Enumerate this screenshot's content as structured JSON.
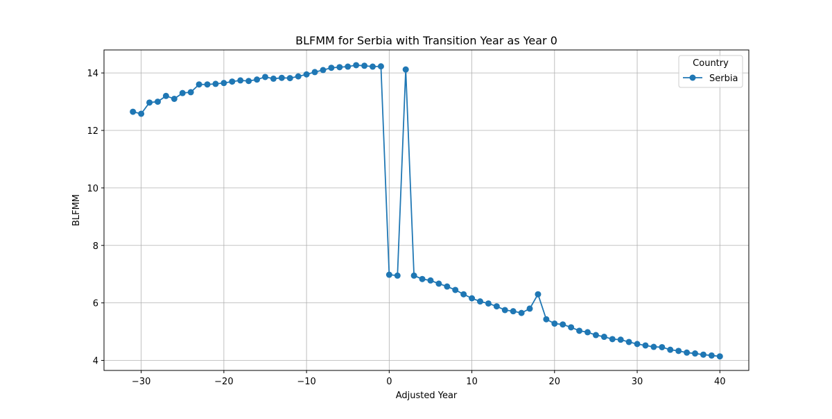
{
  "chart_data": {
    "type": "line",
    "title": "BLFMM for Serbia with Transition Year as Year 0",
    "xlabel": "Adjusted Year",
    "ylabel": "BLFMM",
    "xlim": [
      -34.5,
      43.5
    ],
    "ylim": [
      3.65,
      14.8
    ],
    "xticks": [
      -30,
      -20,
      -10,
      0,
      10,
      20,
      30,
      40
    ],
    "xtick_labels": [
      "−30",
      "−20",
      "−10",
      "0",
      "10",
      "20",
      "30",
      "40"
    ],
    "yticks": [
      4,
      6,
      8,
      10,
      12,
      14
    ],
    "ytick_labels": [
      "4",
      "6",
      "8",
      "10",
      "12",
      "14"
    ],
    "grid": true,
    "legend": {
      "title": "Country",
      "placement": "top-right"
    },
    "series": [
      {
        "name": "Serbia",
        "color": "#1f77b4",
        "marker": "circle",
        "x": [
          -31,
          -30,
          -29,
          -28,
          -27,
          -26,
          -25,
          -24,
          -23,
          -22,
          -21,
          -20,
          -19,
          -18,
          -17,
          -16,
          -15,
          -14,
          -13,
          -12,
          -11,
          -10,
          -9,
          -8,
          -7,
          -6,
          -5,
          -4,
          -3,
          -2,
          -1,
          0,
          1,
          2,
          3,
          4,
          5,
          6,
          7,
          8,
          9,
          10,
          11,
          12,
          13,
          14,
          15,
          16,
          17,
          18,
          19,
          20,
          21,
          22,
          23,
          24,
          25,
          26,
          27,
          28,
          29,
          30,
          31,
          32,
          33,
          34,
          35,
          36,
          37,
          38,
          39,
          40
        ],
        "y": [
          12.65,
          12.58,
          12.97,
          13.0,
          13.2,
          13.1,
          13.3,
          13.33,
          13.6,
          13.6,
          13.62,
          13.65,
          13.7,
          13.74,
          13.72,
          13.77,
          13.86,
          13.8,
          13.83,
          13.82,
          13.88,
          13.95,
          14.03,
          14.1,
          14.18,
          14.2,
          14.22,
          14.27,
          14.25,
          14.22,
          14.23,
          6.98,
          6.95,
          14.12,
          6.95,
          6.83,
          6.78,
          6.67,
          6.57,
          6.45,
          6.3,
          6.16,
          6.05,
          5.98,
          5.88,
          5.75,
          5.71,
          5.65,
          5.8,
          6.3,
          5.43,
          5.28,
          5.25,
          5.15,
          5.03,
          4.98,
          4.88,
          4.82,
          4.74,
          4.72,
          4.64,
          4.57,
          4.52,
          4.47,
          4.46,
          4.37,
          4.33,
          4.27,
          4.24,
          4.2,
          4.17,
          4.14
        ]
      }
    ]
  }
}
